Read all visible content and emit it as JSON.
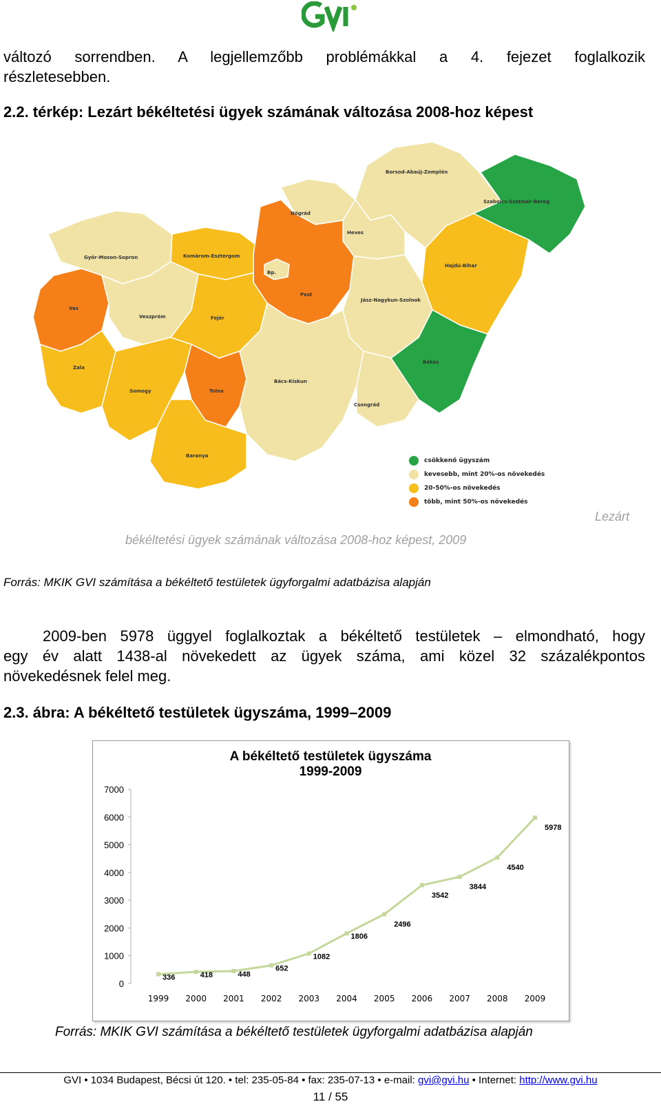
{
  "header": {
    "logo_text": "GVI",
    "logo_color": "#2a9a3a"
  },
  "intro": {
    "line1": "változó sorrendben. A legjellemzőbb problémákkal a 4. fejezet foglalkozik",
    "line2": "részletesebben."
  },
  "map_section": {
    "title": "2.2. térkép: Lezárt békéltetési ügyek számának változása 2008-hoz képest",
    "legend": [
      {
        "label": "csökkenő ügyszám",
        "color": "#27a446"
      },
      {
        "label": "kevesebb, mint 20%-os növekedés",
        "color": "#f1e3a6"
      },
      {
        "label": "20-50%-os növekedés",
        "color": "#f7bd1c"
      },
      {
        "label": "több, mint 50%-os növekedés",
        "color": "#f5801a"
      }
    ],
    "counties": [
      "Borsod-Abaúj-Zemplén",
      "Szabolcs-Szatmár-Bereg",
      "Nógrád",
      "Heves",
      "Győr-Moson-Sopron",
      "Komárom-Esztergom",
      "Bp.",
      "Pest",
      "Hajdú-Bihar",
      "Vas",
      "Veszprém",
      "Fejér",
      "Jász-Nagykun-Szolnok",
      "Zala",
      "Somogy",
      "Tolna",
      "Bács-Kiskun",
      "Békés",
      "Csongrád",
      "Baranya"
    ],
    "caption_right": "Lezárt",
    "caption_center": "békéltetési ügyek számának változása 2008-hoz képest, 2009",
    "source": "Forrás: MKIK GVI számítása a békéltető testületek ügyforgalmi adatbázisa alapján"
  },
  "paragraph": {
    "line1": "2009-ben 5978 üggyel foglalkoztak a békéltető testületek – elmondható, hogy",
    "line2": "egy év alatt 1438-al növekedett az ügyek száma, ami közel 32 százalékpontos",
    "line3": "növekedésnek felel meg."
  },
  "figure_title": "2.3. ábra: A békéltető testületek ügyszáma, 1999–2009",
  "chart_data": {
    "type": "line",
    "title": "A békéltető testületek ügyszáma",
    "subtitle": "1999-2009",
    "x": [
      "1999",
      "2000",
      "2001",
      "2002",
      "2003",
      "2004",
      "2005",
      "2006",
      "2007",
      "2008",
      "2009"
    ],
    "series": [
      {
        "values": [
          336,
          418,
          448,
          652,
          1082,
          1806,
          2496,
          3542,
          3844,
          4540,
          5978
        ]
      }
    ],
    "ylim": [
      0,
      7000
    ],
    "yticks": [
      "0",
      "1000",
      "2000",
      "3000",
      "4000",
      "5000",
      "6000",
      "7000"
    ],
    "line_color": "#c5d79a",
    "grid": false
  },
  "figure_source": "Forrás: MKIK GVI számítása a békéltető testületek ügyforgalmi adatbázisa alapján",
  "footer": {
    "text1": "GVI • 1034 Budapest, Bécsi út 120. • tel: 235-05-84 • fax: 235-07-13 • e-mail: ",
    "email": "gvi@gvi.hu",
    "text2": " • Internet: ",
    "url": "http://www.gvi.hu",
    "page": "11 / 55"
  }
}
